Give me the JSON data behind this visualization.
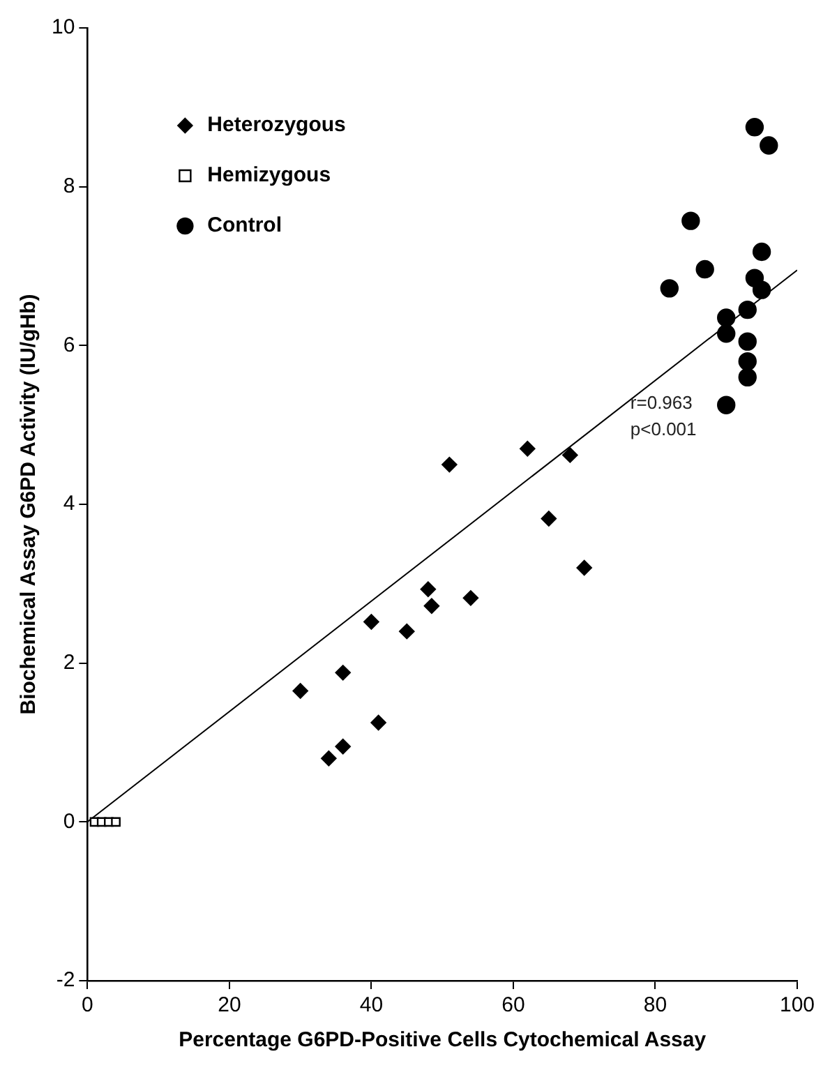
{
  "chart_data": {
    "type": "scatter",
    "xlabel": "Percentage G6PD-Positive Cells Cytochemical Assay",
    "ylabel": "Biochemical Assay G6PD Activity (IU/gHb)",
    "xlim": [
      0,
      100
    ],
    "ylim": [
      -2,
      10
    ],
    "xticks": [
      0,
      20,
      40,
      60,
      80,
      100
    ],
    "yticks": [
      -2,
      0,
      2,
      4,
      6,
      8,
      10
    ],
    "grid": false,
    "legend": "top left",
    "annotations": [
      "r=0.963",
      "p<0.001"
    ],
    "series": [
      {
        "name": "Heterozygous",
        "color": "#000000",
        "marker": "diamond",
        "x": [
          30,
          34,
          36,
          36,
          40,
          41,
          45,
          48,
          48.5,
          51,
          54,
          62,
          65,
          68,
          70
        ],
        "values": [
          1.65,
          0.8,
          0.95,
          1.88,
          2.52,
          1.25,
          2.4,
          2.93,
          2.72,
          4.5,
          2.82,
          4.7,
          3.82,
          4.62,
          3.2
        ]
      },
      {
        "name": "Hemizygous",
        "color": "#000000",
        "marker": "square",
        "x": [
          1,
          2,
          3,
          4
        ],
        "values": [
          0,
          0,
          0,
          0
        ]
      },
      {
        "name": "Control",
        "color": "#000000",
        "marker": "circle",
        "x": [
          82,
          85,
          87,
          90,
          90,
          90,
          93,
          93,
          93,
          93,
          94,
          94,
          95,
          95,
          96
        ],
        "values": [
          6.72,
          7.57,
          6.96,
          5.25,
          6.15,
          6.35,
          5.6,
          5.8,
          6.05,
          6.45,
          6.85,
          8.75,
          7.18,
          6.7,
          8.52
        ]
      },
      {
        "type": "line",
        "color": "#000000",
        "marker": "none",
        "x": [
          0,
          100
        ],
        "values": [
          0,
          6.95
        ]
      }
    ]
  }
}
